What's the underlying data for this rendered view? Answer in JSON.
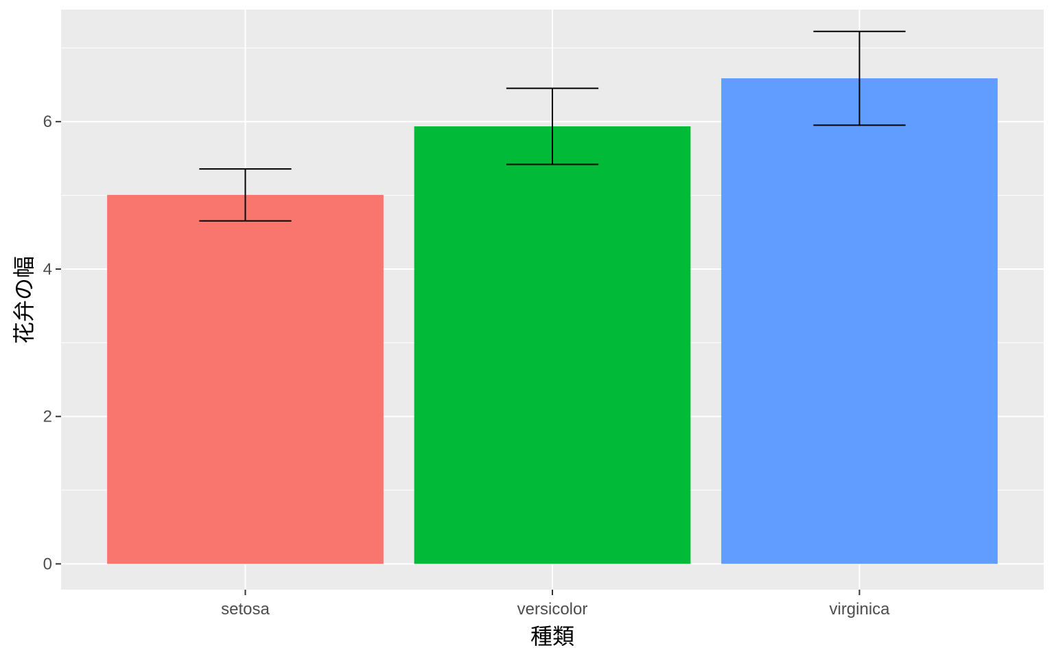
{
  "chart_data": {
    "type": "bar",
    "title": "",
    "xlabel": "種類",
    "ylabel": "花弁の幅",
    "categories": [
      "setosa",
      "versicolor",
      "virginica"
    ],
    "values": [
      5.006,
      5.936,
      6.588
    ],
    "error_bars": {
      "lower": [
        4.654,
        5.42,
        5.952
      ],
      "upper": [
        5.358,
        6.452,
        7.224
      ]
    },
    "colors": [
      "#F8766D",
      "#00BA38",
      "#619CFF"
    ],
    "ylim": [
      -0.35,
      7.52
    ],
    "yticks": [
      0,
      2,
      4,
      6
    ],
    "ytick_labels": [
      "0",
      "2",
      "4",
      "6"
    ],
    "grid": true,
    "panel_background": "#EBEBEB",
    "legend": "none"
  }
}
